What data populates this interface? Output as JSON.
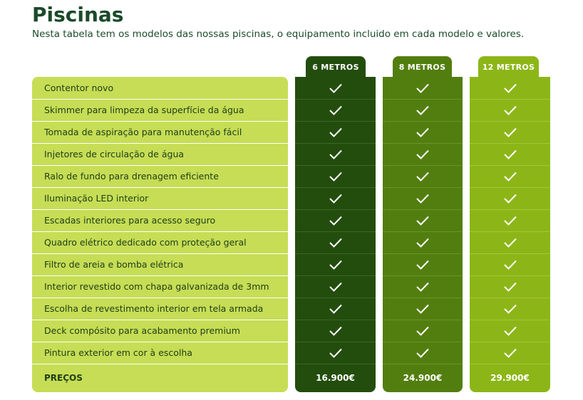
{
  "header": {
    "title": "Piscinas",
    "subtitle": "Nesta tabela tem os modelos das nossas piscinas, o equipamento incluido em cada modelo e valores."
  },
  "table": {
    "columns": [
      "6 METROS",
      "8 METROS",
      "12 METROS"
    ],
    "rows": [
      "Contentor novo",
      "Skimmer para limpeza da superfície da água",
      "Tomada de aspiração para manutenção fácil",
      "Injetores de circulação de água",
      "Ralo de fundo para drenagem eficiente",
      "Iluminação LED interior",
      "Escadas interiores para acesso seguro",
      "Quadro elétrico dedicado com proteção geral",
      "Filtro de areia e bomba elétrica",
      "Interior revestido com chapa galvanizada de 3mm",
      "Escolha de revestimento interior em tela armada",
      "Deck compósito para acabamento premium",
      "Pintura exterior em cor à escolha"
    ],
    "prices": {
      "label": "PREÇOS",
      "values": [
        "16.900€",
        "24.900€",
        "29.900€"
      ]
    }
  }
}
